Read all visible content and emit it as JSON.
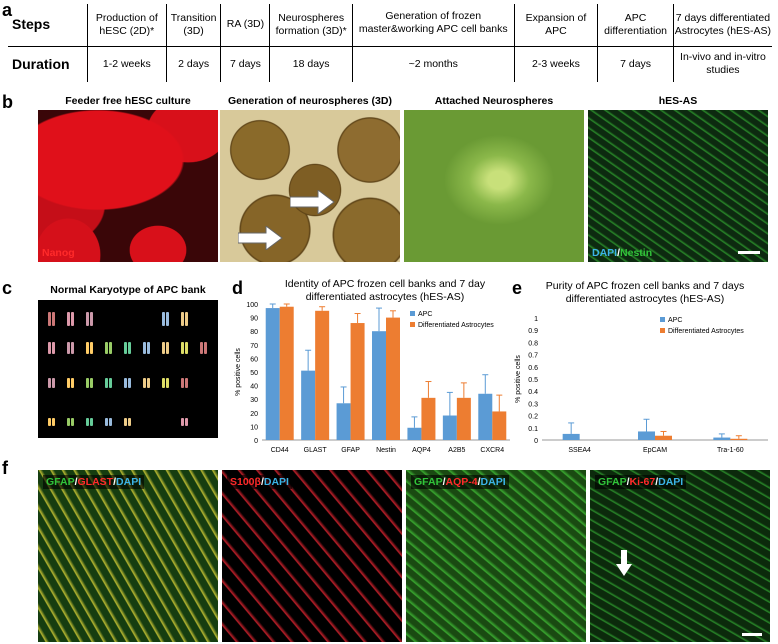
{
  "panel_a": {
    "letter": "a",
    "row_labels": [
      "Steps",
      "Duration"
    ],
    "steps": [
      "Production of hESC (2D)*",
      "Transition (3D)",
      "RA (3D)",
      "Neurospheres formation (3D)*",
      "Generation of frozen master&working APC cell banks",
      "Expansion of APC",
      "APC differentiation",
      "7 days differentiated Astrocytes (hES-AS)"
    ],
    "durations": [
      "1-2 weeks",
      "2 days",
      "7 days",
      "18 days",
      "~2 months",
      "2-3 weeks",
      "7 days",
      "In-vivo and in-vitro studies"
    ]
  },
  "panel_b": {
    "letter": "b",
    "titles": [
      "Feeder free hESC culture",
      "Generation of neurospheres (3D)",
      "Attached Neurospheres",
      "hES-AS"
    ],
    "stain_1": "Nanog",
    "stain_4_a": "DAPI",
    "stain_4_sep": "/",
    "stain_4_b": "Nestin"
  },
  "panel_c": {
    "letter": "c",
    "title": "Normal Karyotype of APC bank"
  },
  "panel_d": {
    "letter": "d",
    "title_line1": "Identity of APC frozen cell banks and 7 day",
    "title_line2": "differentiated astrocytes (hES-AS)"
  },
  "panel_e": {
    "letter": "e",
    "title_line1": "Purity of APC frozen cell banks and 7 days",
    "title_line2": "differentiated astrocytes (hES-AS)"
  },
  "panel_f": {
    "letter": "f",
    "stains": [
      [
        {
          "t": "GFAP",
          "c": "#31c43a"
        },
        {
          "t": "/",
          "c": "#fff"
        },
        {
          "t": "GLAST",
          "c": "#ff2a2a"
        },
        {
          "t": "/",
          "c": "#fff"
        },
        {
          "t": "DAPI",
          "c": "#3cb3e6"
        }
      ],
      [
        {
          "t": "S100β",
          "c": "#ff2a2a"
        },
        {
          "t": "/",
          "c": "#fff"
        },
        {
          "t": "DAPI",
          "c": "#3cb3e6"
        }
      ],
      [
        {
          "t": "GFAP",
          "c": "#31c43a"
        },
        {
          "t": "/",
          "c": "#fff"
        },
        {
          "t": "AQP-4",
          "c": "#ff2a2a"
        },
        {
          "t": "/",
          "c": "#fff"
        },
        {
          "t": "DAPI",
          "c": "#3cb3e6"
        }
      ],
      [
        {
          "t": "GFAP",
          "c": "#31c43a"
        },
        {
          "t": "/",
          "c": "#fff"
        },
        {
          "t": "Ki-67",
          "c": "#ff2a2a"
        },
        {
          "t": "/",
          "c": "#fff"
        },
        {
          "t": "DAPI",
          "c": "#3cb3e6"
        }
      ]
    ]
  },
  "colors": {
    "apc": "#5b9bd5",
    "diff": "#ed7d31"
  },
  "chart_data": [
    {
      "type": "bar",
      "ylabel": "% positive cells",
      "ylim": [
        0,
        100
      ],
      "yticks": [
        "0",
        "10",
        "20",
        "30",
        "40",
        "50",
        "60",
        "70",
        "80",
        "90",
        "100"
      ],
      "categories": [
        "CD44",
        "GLAST",
        "GFAP",
        "Nestin",
        "AQP4",
        "A2B5",
        "CXCR4"
      ],
      "series": [
        {
          "name": "APC",
          "values": [
            97,
            51,
            27,
            80,
            9,
            18,
            34
          ],
          "errors": [
            3,
            15,
            12,
            17,
            8,
            17,
            14
          ]
        },
        {
          "name": "Differentiated Astrocytes",
          "values": [
            98,
            95,
            86,
            90,
            31,
            31,
            21
          ],
          "errors": [
            2,
            3,
            7,
            5,
            12,
            11,
            12
          ]
        }
      ],
      "grid": false,
      "legend": "top-right"
    },
    {
      "type": "bar",
      "ylabel": "% positive cells",
      "ylim": [
        0,
        1
      ],
      "yticks": [
        "0",
        "0.1",
        "0.2",
        "0.3",
        "0.4",
        "0.5",
        "0.6",
        "0.7",
        "0.8",
        "0.9",
        "1"
      ],
      "categories": [
        "SSEA4",
        "EpCAM",
        "Tra-1-60"
      ],
      "series": [
        {
          "name": "APC",
          "values": [
            0.05,
            0.07,
            0.02
          ],
          "errors": [
            0.09,
            0.1,
            0.03
          ]
        },
        {
          "name": "Differentiated Astrocytes",
          "values": [
            0.0,
            0.035,
            0.01
          ],
          "errors": [
            0.0,
            0.035,
            0.025
          ]
        }
      ],
      "grid": false,
      "legend": "top-right"
    }
  ]
}
